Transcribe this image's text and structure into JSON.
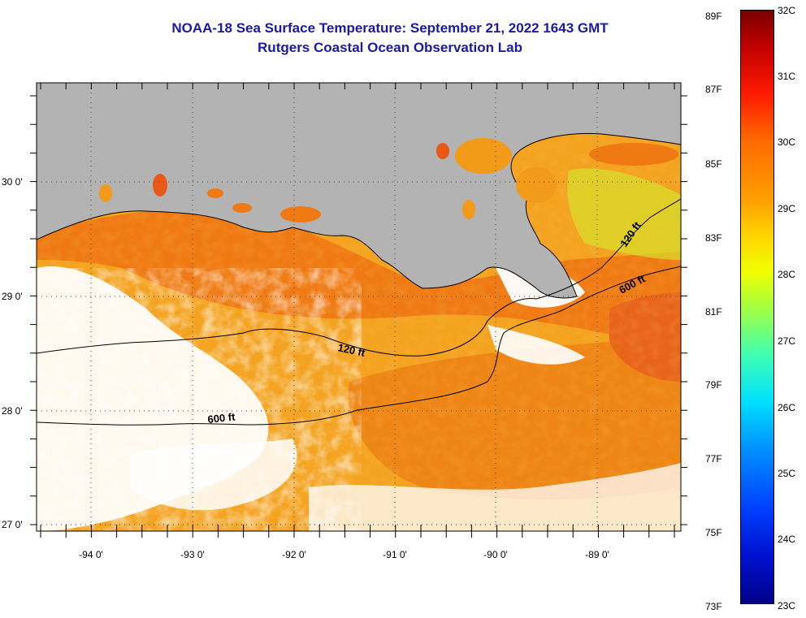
{
  "title": {
    "line1": "NOAA-18 Sea Surface Temperature:  September 21, 2022 1643 GMT",
    "line2": "Rutgers Coastal Ocean Observation Lab"
  },
  "map": {
    "lat_labels": [
      "30 0'",
      "29 0'",
      "28 0'",
      "27 0'"
    ],
    "lon_labels": [
      "-94 0'",
      "-93 0'",
      "-92 0'",
      "-91 0'",
      "-90 0'",
      "-89 0'"
    ],
    "isobath_labels": [
      "120 ft",
      "600 ft",
      "120 ft",
      "600 ft"
    ],
    "colors": {
      "land": "#b3b3b3",
      "cloud": "#ffffff",
      "warm_water": "#f29a1a",
      "hot_water": "#ee6a10"
    }
  },
  "colorbar": {
    "f_labels": [
      "89F",
      "87F",
      "85F",
      "83F",
      "81F",
      "79F",
      "77F",
      "75F",
      "73F"
    ],
    "c_labels": [
      "32C",
      "31C",
      "30C",
      "29C",
      "28C",
      "27C",
      "26C",
      "25C",
      "24C",
      "23C"
    ]
  }
}
